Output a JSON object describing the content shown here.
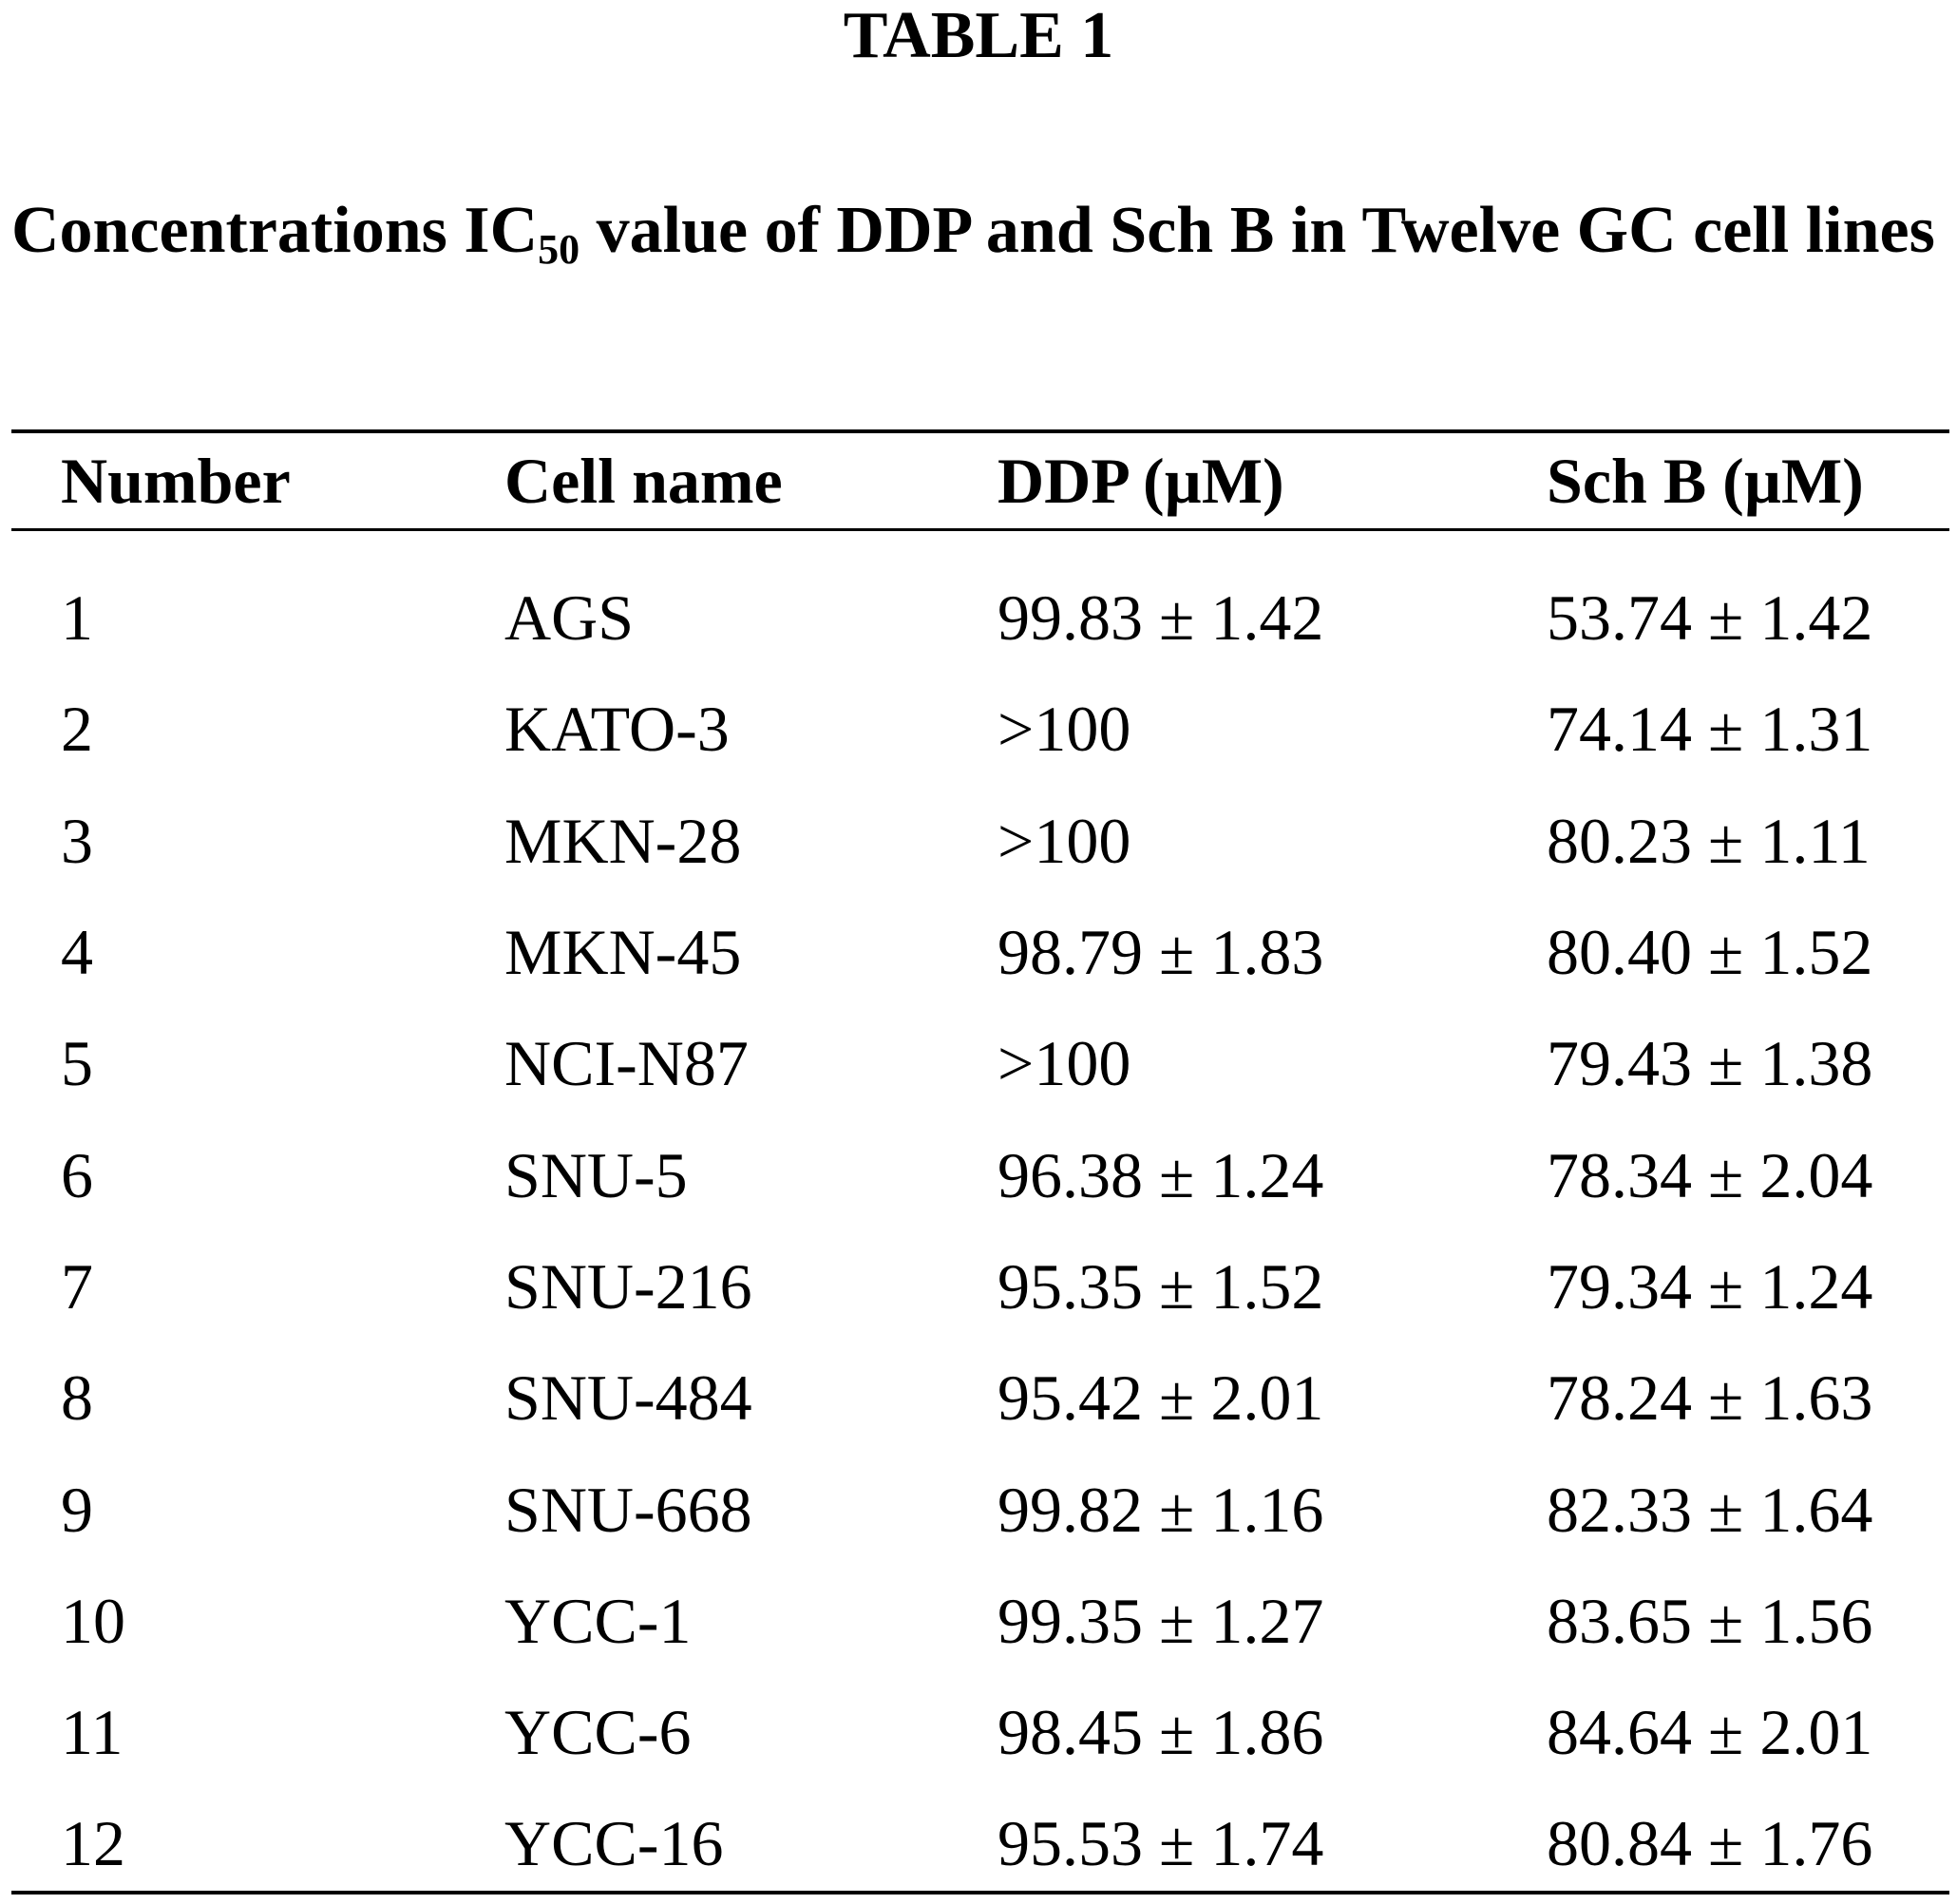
{
  "table_label": "TABLE 1",
  "caption": {
    "before_sub": "Concentrations IC",
    "sub": "50",
    "after_sub": " value of DDP and Sch B in Twelve GC cell lines"
  },
  "columns": [
    "Number",
    "Cell name",
    "DDP (µM)",
    "Sch B (µM)"
  ],
  "rows": [
    [
      "1",
      "AGS",
      "99.83 ± 1.42",
      "53.74 ± 1.42"
    ],
    [
      "2",
      "KATO-3",
      ">100",
      "74.14 ± 1.31"
    ],
    [
      "3",
      "MKN-28",
      ">100",
      "80.23 ± 1.11"
    ],
    [
      "4",
      "MKN-45",
      "98.79 ± 1.83",
      "80.40 ± 1.52"
    ],
    [
      "5",
      "NCI-N87",
      ">100",
      "79.43 ± 1.38"
    ],
    [
      "6",
      "SNU-5",
      "96.38 ± 1.24",
      "78.34 ± 2.04"
    ],
    [
      "7",
      "SNU-216",
      "95.35 ± 1.52",
      "79.34 ± 1.24"
    ],
    [
      "8",
      "SNU-484",
      "95.42 ± 2.01",
      "78.24 ± 1.63"
    ],
    [
      "9",
      "SNU-668",
      "99.82 ± 1.16",
      "82.33 ± 1.64"
    ],
    [
      "10",
      "YCC-1",
      "99.35 ± 1.27",
      "83.65 ± 1.56"
    ],
    [
      "11",
      "YCC-6",
      "98.45 ± 1.86",
      "84.64 ± 2.01"
    ],
    [
      "12",
      "YCC-16",
      "95.53 ± 1.74",
      "80.84 ± 1.76"
    ]
  ]
}
